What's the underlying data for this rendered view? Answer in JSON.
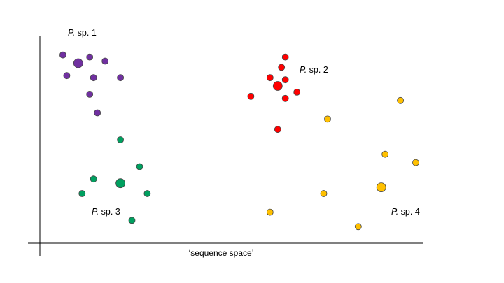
{
  "x_axis_label": "‘sequence space’",
  "clusters": [
    {
      "id": "sp1",
      "genus_abbrev": "P.",
      "species_text": " sp. 1",
      "color": "#7030a0",
      "points": [
        {
          "x": 0.06,
          "y": 0.91
        },
        {
          "x": 0.13,
          "y": 0.9
        },
        {
          "x": 0.17,
          "y": 0.88
        },
        {
          "x": 0.1,
          "y": 0.87,
          "centroid": true
        },
        {
          "x": 0.07,
          "y": 0.81
        },
        {
          "x": 0.14,
          "y": 0.8
        },
        {
          "x": 0.21,
          "y": 0.8
        },
        {
          "x": 0.13,
          "y": 0.72
        },
        {
          "x": 0.15,
          "y": 0.63
        }
      ]
    },
    {
      "id": "sp2",
      "genus_abbrev": "P.",
      "species_text": " sp. 2",
      "color": "#ff0000",
      "points": [
        {
          "x": 0.64,
          "y": 0.9
        },
        {
          "x": 0.63,
          "y": 0.85
        },
        {
          "x": 0.6,
          "y": 0.8
        },
        {
          "x": 0.64,
          "y": 0.79
        },
        {
          "x": 0.62,
          "y": 0.76,
          "centroid": true
        },
        {
          "x": 0.67,
          "y": 0.73
        },
        {
          "x": 0.55,
          "y": 0.71
        },
        {
          "x": 0.64,
          "y": 0.7
        },
        {
          "x": 0.62,
          "y": 0.55
        }
      ]
    },
    {
      "id": "sp3",
      "genus_abbrev": "P.",
      "species_text": " sp. 3",
      "color": "#00a060",
      "points": [
        {
          "x": 0.21,
          "y": 0.5
        },
        {
          "x": 0.26,
          "y": 0.37
        },
        {
          "x": 0.14,
          "y": 0.31
        },
        {
          "x": 0.21,
          "y": 0.29,
          "centroid": true
        },
        {
          "x": 0.11,
          "y": 0.24
        },
        {
          "x": 0.28,
          "y": 0.24
        },
        {
          "x": 0.24,
          "y": 0.11
        }
      ]
    },
    {
      "id": "sp4",
      "genus_abbrev": "P.",
      "species_text": " sp. 4",
      "color": "#ffc000",
      "points": [
        {
          "x": 0.94,
          "y": 0.69
        },
        {
          "x": 0.75,
          "y": 0.6
        },
        {
          "x": 0.9,
          "y": 0.43
        },
        {
          "x": 0.98,
          "y": 0.39
        },
        {
          "x": 0.89,
          "y": 0.27,
          "centroid": true
        },
        {
          "x": 0.74,
          "y": 0.24
        },
        {
          "x": 0.6,
          "y": 0.15
        },
        {
          "x": 0.83,
          "y": 0.08
        }
      ]
    }
  ]
}
